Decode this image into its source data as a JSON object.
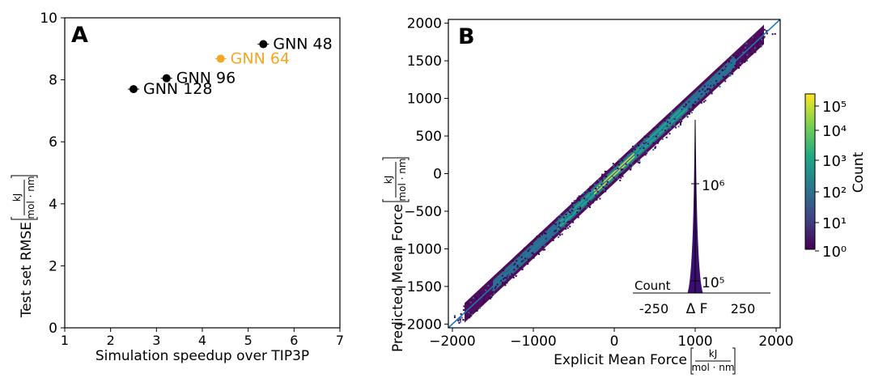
{
  "chart_data": [
    {
      "type": "scatter",
      "panel_label": "A",
      "xlabel": "Simulation speedup over TIP3P",
      "ylabel": "Test set RMSE",
      "ylabel_unit": {
        "num": "kJ",
        "den": "mol · nm"
      },
      "xlim": [
        1,
        7
      ],
      "ylim": [
        0,
        10
      ],
      "xticks": [
        "1",
        "2",
        "3",
        "4",
        "5",
        "6",
        "7"
      ],
      "yticks": [
        "0",
        "2",
        "4",
        "6",
        "8",
        "10"
      ],
      "grid": false,
      "points": [
        {
          "label": "GNN 48",
          "x": 5.33,
          "y": 9.15,
          "color": "#000000"
        },
        {
          "label": "GNN 64",
          "x": 4.4,
          "y": 8.68,
          "color": "#f5a623"
        },
        {
          "label": "GNN 96",
          "x": 3.22,
          "y": 8.05,
          "color": "#000000"
        },
        {
          "label": "GNN 128",
          "x": 2.5,
          "y": 7.7,
          "color": "#000000"
        }
      ]
    },
    {
      "type": "heatmap",
      "panel_label": "B",
      "xlabel": "Explicit Mean Force",
      "ylabel": "Predicted Mean Force",
      "unit": {
        "num": "kJ",
        "den": "mol · nm"
      },
      "xlim": [
        -2050,
        2050
      ],
      "ylim": [
        -2050,
        2050
      ],
      "xticks": [
        "−2000",
        "−1000",
        "0",
        "1000",
        "2000"
      ],
      "yticks": [
        "−2000",
        "−1500",
        "−1000",
        "−500",
        "0",
        "500",
        "1000",
        "1500",
        "2000"
      ],
      "grid": false,
      "diagonal_color": "#1f77b4",
      "colorbar": {
        "label": "Count",
        "scale": "log",
        "ticks": [
          "10⁰",
          "10¹",
          "10²",
          "10³",
          "10⁴",
          "10⁵"
        ],
        "colormap": "viridis"
      },
      "inset": {
        "type": "histogram",
        "xlabel": "Δ F",
        "ylabel": "Count",
        "xticks": [
          "-250",
          "250"
        ],
        "yticks": [
          "10⁵",
          "10⁶"
        ],
        "color": "#3b0f70"
      }
    }
  ]
}
